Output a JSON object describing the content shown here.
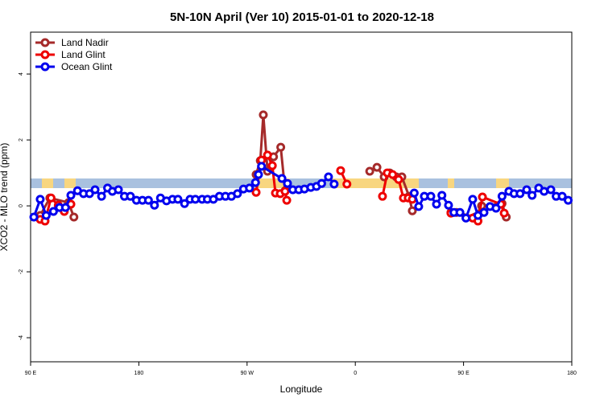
{
  "chart_data": {
    "type": "line",
    "title": "5N-10N April (Ver 10)   2015-01-01 to 2020-12-18",
    "xlabel": "Longitude",
    "ylabel": "XCO2 - MLO trend (ppm)",
    "xlim": [
      90,
      540
    ],
    "ylim": [
      -4.73,
      5.27
    ],
    "xticks": [
      {
        "value": 90,
        "label": "90 E"
      },
      180,
      {
        "value": 270,
        "label": "90 W"
      },
      {
        "value": 360,
        "label": "0"
      },
      {
        "value": 450,
        "label": "90 E"
      },
      {
        "value": 540,
        "label": "180"
      }
    ],
    "yticks": [
      -4,
      -2,
      0,
      2,
      4
    ],
    "legend": "top-left",
    "series": [
      {
        "name": "Land Nadir",
        "color": "#a52a2a",
        "x": [
          98,
          106,
          121.5,
          126,
          null,
          277.5,
          281,
          283.5,
          287,
          292,
          298,
          301.6,
          null,
          372,
          378,
          384,
          388.6,
          394,
          398.7,
          404.7,
          407.4,
          null,
          439.5,
          444,
          459.6,
          465,
          482,
          485.5
        ],
        "values": [
          -0.29,
          0.24,
          0.1,
          -0.34,
          null,
          0.95,
          1.37,
          2.76,
          1.05,
          1.49,
          1.78,
          0.46,
          null,
          1.05,
          1.17,
          0.88,
          1.0,
          0.88,
          0.88,
          0.29,
          -0.15,
          null,
          -0.2,
          -0.2,
          -0.34,
          0,
          0.07,
          -0.34
        ]
      },
      {
        "name": "Land Glint",
        "color": "#ee0000",
        "x": [
          98,
          102,
          107,
          113,
          118,
          123.5,
          null,
          277.5,
          282,
          287,
          291,
          293.6,
          297.6,
          301.6,
          303,
          null,
          347.8,
          353,
          null,
          382.6,
          386.6,
          391,
          396,
          400,
          404,
          407.4,
          null,
          439.5,
          457.6,
          462,
          465.7,
          481,
          483.8
        ],
        "values": [
          -0.41,
          -0.46,
          0.24,
          0.02,
          -0.17,
          0.05,
          null,
          0.41,
          1.39,
          1.54,
          1.22,
          0.39,
          0.37,
          0.44,
          0.17,
          null,
          1.07,
          0.66,
          null,
          0.29,
          1.0,
          0.95,
          0.8,
          0.24,
          0.24,
          0.2,
          null,
          -0.22,
          -0.37,
          -0.46,
          0.27,
          0.05,
          -0.22
        ]
      },
      {
        "name": "Ocean Glint",
        "color": "#0000ee",
        "x": [
          92.7,
          98,
          103,
          109,
          114,
          119,
          123.5,
          129,
          134,
          139,
          143.6,
          149,
          154,
          158,
          163,
          168,
          173,
          178,
          183,
          188,
          193,
          198,
          203,
          208,
          212.5,
          218,
          222.6,
          227,
          232.6,
          237,
          242,
          247,
          252,
          257,
          262,
          267,
          272,
          277,
          279.5,
          282,
          299,
          303.6,
          308,
          313,
          317.7,
          323,
          327.7,
          332,
          337.7,
          342.4,
          null,
          409,
          412.7,
          417.4,
          422.8,
          427.5,
          432,
          437.5,
          442,
          447,
          452,
          457.6,
          462,
          467,
          472,
          477,
          482,
          487.7,
          492,
          497,
          502.5,
          507,
          512.5,
          517,
          522.6,
          527,
          532,
          537
        ],
        "values": [
          -0.34,
          0.2,
          -0.29,
          -0.17,
          -0.05,
          -0.05,
          0.32,
          0.46,
          0.37,
          0.37,
          0.49,
          0.29,
          0.54,
          0.44,
          0.49,
          0.29,
          0.29,
          0.17,
          0.17,
          0.17,
          0.02,
          0.24,
          0.15,
          0.2,
          0.2,
          0.07,
          0.2,
          0.2,
          0.2,
          0.2,
          0.2,
          0.29,
          0.29,
          0.29,
          0.37,
          0.51,
          0.54,
          0.71,
          0.95,
          1.2,
          0.83,
          0.68,
          0.49,
          0.49,
          0.51,
          0.56,
          0.59,
          0.68,
          0.88,
          0.66,
          null,
          0.39,
          -0.02,
          0.29,
          0.29,
          0.05,
          0.32,
          0.02,
          -0.2,
          -0.2,
          -0.37,
          0.2,
          -0.29,
          -0.2,
          -0.02,
          -0.07,
          0.29,
          0.44,
          0.37,
          0.37,
          0.49,
          0.32,
          0.54,
          0.44,
          0.49,
          0.29,
          0.29,
          0.17
        ]
      }
    ]
  }
}
